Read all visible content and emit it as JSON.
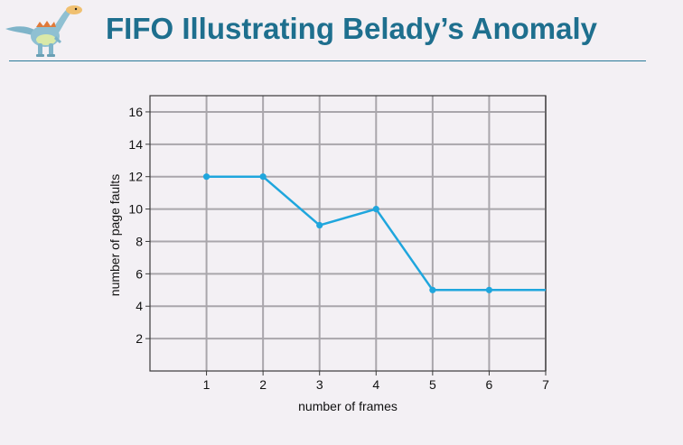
{
  "slide": {
    "title": "FIFO Illustrating Belady’s Anomaly",
    "logo_icon": "dinosaur-icon"
  },
  "colors": {
    "title": "#1e6f8e",
    "series_line": "#1fa6dd",
    "grid": "#a9a6ab",
    "background": "#f3f0f4"
  },
  "chart_data": {
    "type": "line",
    "title": "",
    "xlabel": "number of frames",
    "ylabel": "number of page faults",
    "xlim": [
      0,
      7
    ],
    "ylim": [
      0,
      16
    ],
    "xticks": [
      1,
      2,
      3,
      4,
      5,
      6,
      7
    ],
    "yticks": [
      2,
      4,
      6,
      8,
      10,
      12,
      14,
      16
    ],
    "grid": true,
    "legend": "none",
    "series": [
      {
        "x": [
          1,
          2,
          3,
          4,
          5,
          6,
          7
        ],
        "y": [
          12,
          12,
          9,
          10,
          5,
          5,
          5
        ],
        "markers": [
          true,
          true,
          true,
          true,
          true,
          true,
          false
        ]
      }
    ]
  }
}
